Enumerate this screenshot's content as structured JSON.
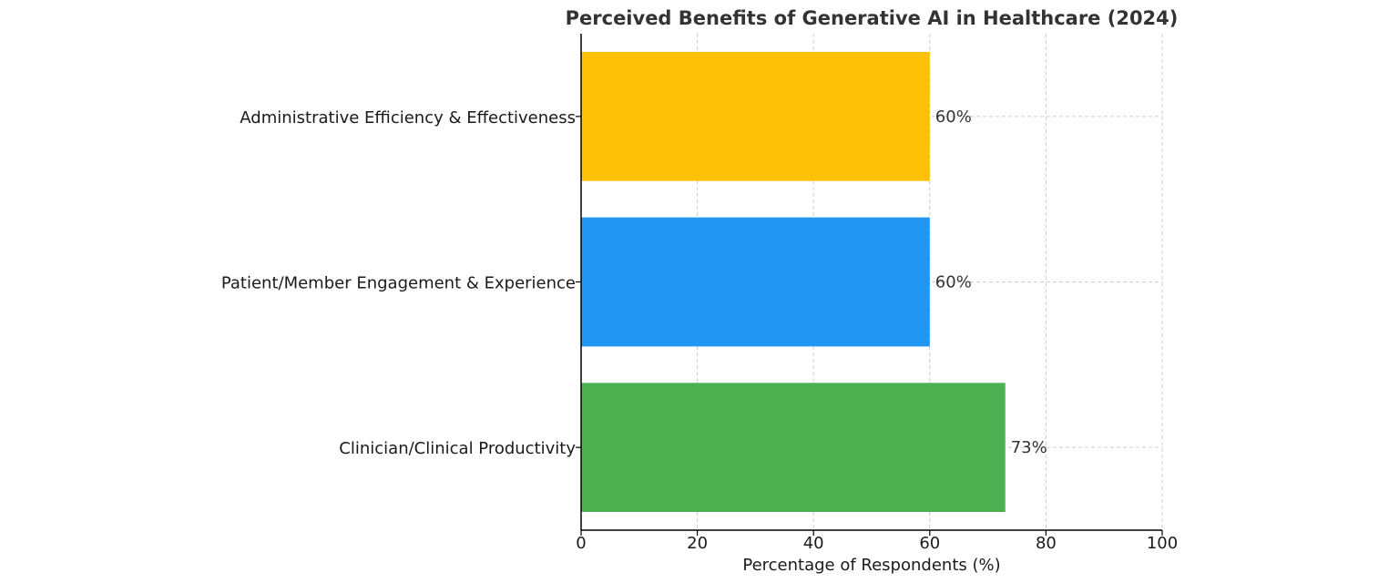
{
  "chart_data": {
    "type": "bar",
    "orientation": "horizontal",
    "title": "Perceived Benefits of Generative AI in Healthcare (2024)",
    "xlabel": "Percentage of Respondents (%)",
    "ylabel": "",
    "xlim": [
      0,
      100
    ],
    "xticks": [
      0,
      20,
      40,
      60,
      80,
      100
    ],
    "grid": true,
    "categories": [
      "Administrative Efficiency & Effectiveness",
      "Patient/Member Engagement & Experience",
      "Clinician/Clinical Productivity"
    ],
    "values": [
      60,
      60,
      73
    ],
    "value_labels": [
      "60%",
      "60%",
      "73%"
    ],
    "colors": [
      "#FFC107",
      "#2196F3",
      "#4CAF50"
    ]
  }
}
